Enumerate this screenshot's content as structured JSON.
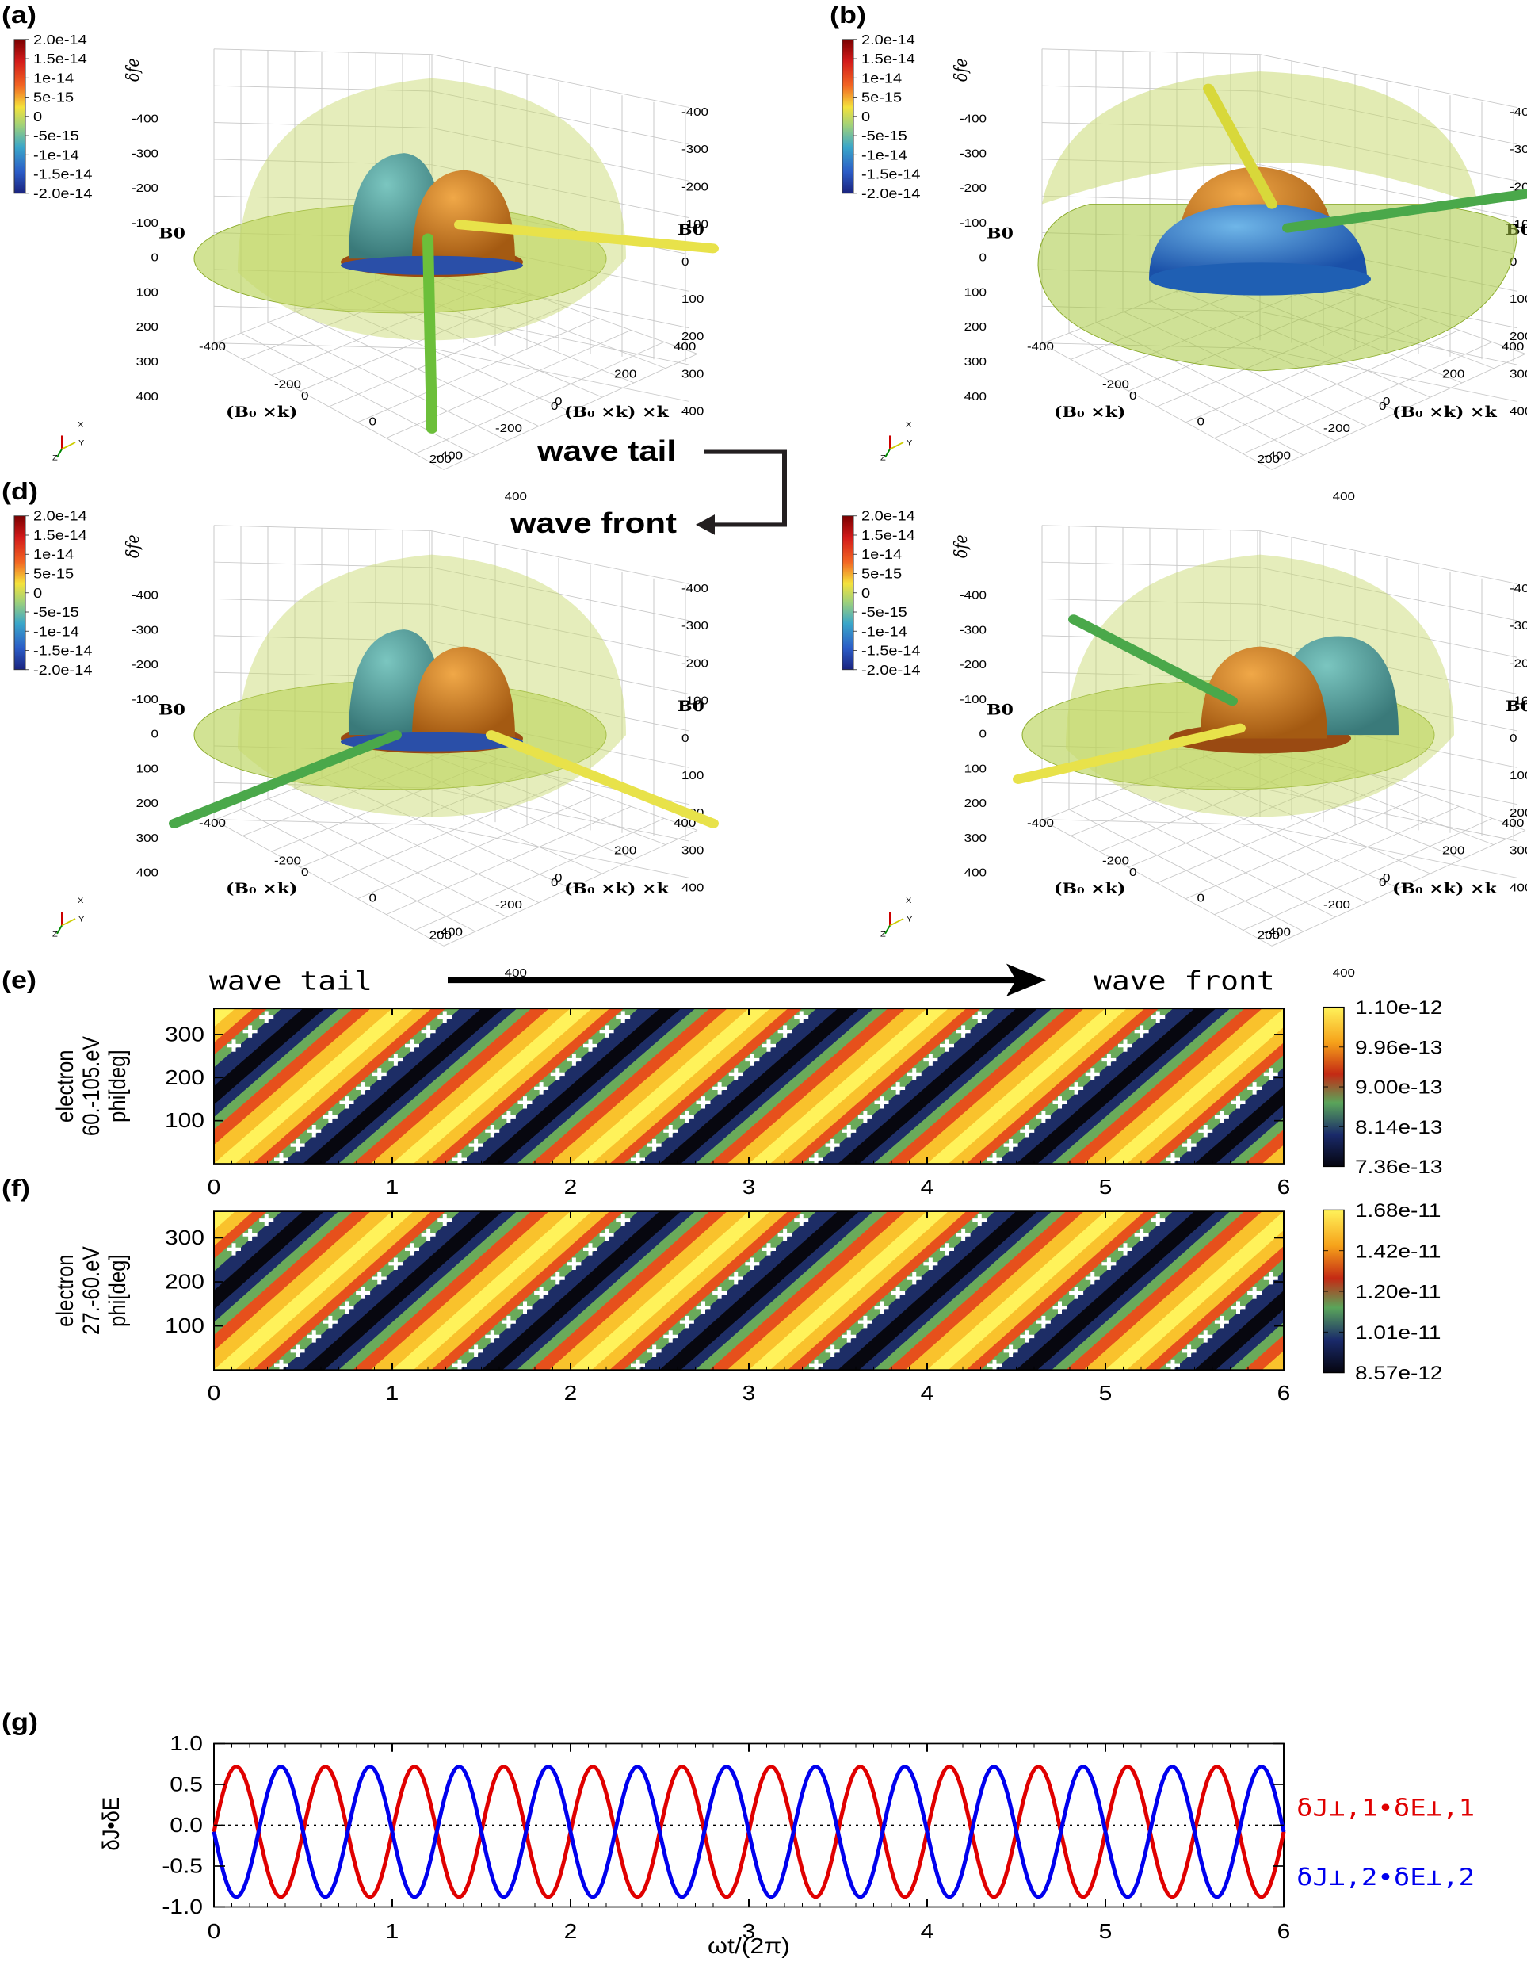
{
  "panels3d": {
    "labels": [
      "(a)",
      "(b)",
      "(d)"
    ],
    "colorbar_ticks": [
      "2.0e-14",
      "1.5e-14",
      "1e-14",
      "5e-15",
      "0",
      "-5e-15",
      "-1e-14",
      "-1.5e-14",
      "-2.0e-14"
    ],
    "colorbar_title": "δf",
    "colorbar_title_sub": "e",
    "axis_vertical_label": "B",
    "axis_vertical_sub": "0",
    "axis_left_label": "(B₀ ×k)",
    "axis_right_label": "(B₀ ×k) ×k",
    "vert_ticks": [
      "-400",
      "-300",
      "-200",
      "-100",
      "0",
      "100",
      "200",
      "300",
      "400"
    ],
    "left_ticks": [
      "-400",
      "-200",
      "0",
      "200",
      "400"
    ],
    "right_ticks": [
      "400",
      "200",
      "0",
      "-200",
      "-400"
    ],
    "origin_tick": "0",
    "triad": {
      "x": "X",
      "y": "Y",
      "z": "Z"
    }
  },
  "annotations": {
    "wave_tail": "wave tail",
    "wave_front": "wave front"
  },
  "colors": {
    "jet_top": "#7a0000",
    "jet_bottom": "#1a237e",
    "hot": "#ffe23b",
    "cold": "#10102a",
    "curve1": "#e00000",
    "curve2": "#0000ee"
  },
  "chart_data": [
    {
      "panel": "(e)",
      "type": "heatmap",
      "header_left": "wave tail",
      "header_right": "wave front",
      "ylabel_lines": [
        "electron",
        "60.-105.eV",
        "phi[deg]"
      ],
      "x_ticks": [
        "0",
        "1",
        "2",
        "3",
        "4",
        "5",
        "6"
      ],
      "y_ticks": [
        "300",
        "200",
        "100"
      ],
      "xlim": [
        0,
        6
      ],
      "ylim": [
        0,
        360
      ],
      "colorbar_ticks": [
        "1.10e-12",
        "9.96e-13",
        "9.00e-13",
        "8.14e-13",
        "7.36e-13"
      ],
      "value_range": [
        7.36e-13,
        1.1e-12
      ],
      "stripe_period_x": 1,
      "stripe_slope_deg_per_cycle": -360
    },
    {
      "panel": "(f)",
      "type": "heatmap",
      "ylabel_lines": [
        "electron",
        "27.-60.eV",
        "phi[deg]"
      ],
      "x_ticks": [
        "0",
        "1",
        "2",
        "3",
        "4",
        "5",
        "6"
      ],
      "y_ticks": [
        "300",
        "200",
        "100"
      ],
      "xlim": [
        0,
        6
      ],
      "ylim": [
        0,
        360
      ],
      "colorbar_ticks": [
        "1.68e-11",
        "1.42e-11",
        "1.20e-11",
        "1.01e-11",
        "8.57e-12"
      ],
      "value_range": [
        8.57e-12,
        1.68e-11
      ],
      "stripe_period_x": 1,
      "stripe_slope_deg_per_cycle": -360
    },
    {
      "panel": "(g)",
      "type": "line",
      "ylabel": "δJ•δE",
      "xlabel": "ωt/(2π)",
      "x_ticks": [
        "0",
        "1",
        "2",
        "3",
        "4",
        "5",
        "6"
      ],
      "y_ticks": [
        "1.0",
        "0.5",
        "0.0",
        "-0.5",
        "-1.0"
      ],
      "xlim": [
        0,
        6
      ],
      "ylim": [
        -1.0,
        1.0
      ],
      "series": [
        {
          "name": "δJ⊥,1•δE⊥,1",
          "amplitude": 0.8,
          "offset": -0.08,
          "cycles_per_unit": 2,
          "phase_deg": 180,
          "color": "#e00000"
        },
        {
          "name": "δJ⊥,2•δE⊥,2",
          "amplitude": 0.8,
          "offset": -0.08,
          "cycles_per_unit": 2,
          "phase_deg": 0,
          "color": "#0000ee"
        }
      ],
      "zero_line": "dotted"
    }
  ]
}
